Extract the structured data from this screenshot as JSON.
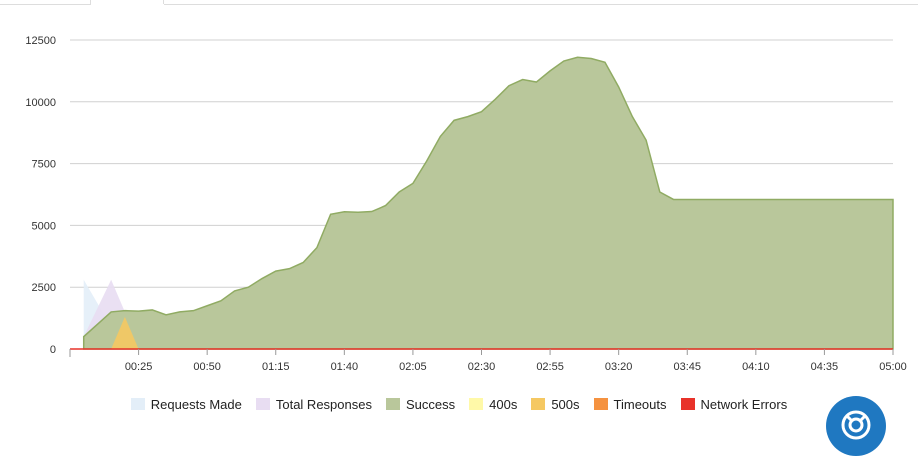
{
  "chart_data": {
    "type": "area",
    "title": "",
    "xlabel": "",
    "ylabel": "",
    "x_tick_labels": [
      "00:25",
      "00:50",
      "01:15",
      "01:40",
      "02:05",
      "02:30",
      "02:55",
      "03:20",
      "03:45",
      "04:10",
      "04:35",
      "05:00"
    ],
    "y_tick_labels": [
      "0",
      "2500",
      "5000",
      "7500",
      "10000",
      "12500"
    ],
    "y_ticks": [
      0,
      2500,
      5000,
      7500,
      10000,
      12500
    ],
    "xlim_seconds": [
      0,
      300
    ],
    "ylim": [
      0,
      12500
    ],
    "grid": true,
    "legend_position": "bottom",
    "x_seconds": [
      5,
      15,
      20,
      25,
      30,
      35,
      40,
      45,
      50,
      55,
      60,
      65,
      70,
      75,
      80,
      85,
      90,
      95,
      100,
      105,
      110,
      115,
      120,
      125,
      130,
      135,
      140,
      145,
      150,
      155,
      160,
      165,
      170,
      175,
      180,
      185,
      190,
      195,
      200,
      205,
      210,
      215,
      220,
      225,
      235,
      245,
      255,
      265,
      275,
      285,
      295,
      300
    ],
    "series": [
      {
        "name": "Requests Made",
        "color": "#e3eef8",
        "values": [
          2800,
          900,
          0,
          0,
          0,
          0,
          0,
          0,
          0,
          0,
          0,
          0,
          0,
          0,
          0,
          0,
          0,
          0,
          0,
          0,
          0,
          0,
          0,
          0,
          0,
          0,
          0,
          0,
          0,
          0,
          0,
          0,
          0,
          0,
          0,
          0,
          0,
          0,
          0,
          0,
          0,
          0,
          0,
          0,
          0,
          0,
          0,
          0,
          0,
          0,
          0,
          0
        ]
      },
      {
        "name": "Total Responses",
        "color": "#e8ddf2",
        "values": [
          500,
          2800,
          1500,
          0,
          0,
          0,
          0,
          0,
          0,
          0,
          0,
          0,
          0,
          0,
          0,
          0,
          0,
          0,
          0,
          0,
          0,
          0,
          0,
          0,
          0,
          0,
          0,
          0,
          0,
          0,
          0,
          0,
          0,
          0,
          0,
          0,
          0,
          0,
          0,
          0,
          0,
          0,
          0,
          0,
          0,
          0,
          0,
          0,
          0,
          0,
          0,
          0
        ]
      },
      {
        "name": "Success",
        "color": "#b9c79b",
        "stroke": "#90ab63",
        "values": [
          500,
          1500,
          1550,
          1530,
          1580,
          1380,
          1500,
          1550,
          1750,
          1950,
          2350,
          2500,
          2850,
          3150,
          3250,
          3500,
          4100,
          5450,
          5550,
          5530,
          5560,
          5800,
          6350,
          6700,
          7600,
          8600,
          9250,
          9400,
          9600,
          10100,
          10650,
          10900,
          10800,
          11250,
          11650,
          11800,
          11750,
          11600,
          10600,
          9400,
          8450,
          6350,
          6050,
          6050,
          6050,
          6050,
          6050,
          6050,
          6050,
          6050,
          6050,
          6050
        ]
      },
      {
        "name": "400s",
        "color": "#fff9a8",
        "values": [
          0,
          0,
          0,
          0,
          0,
          0,
          0,
          0,
          0,
          0,
          0,
          0,
          0,
          0,
          0,
          0,
          0,
          0,
          0,
          0,
          0,
          0,
          0,
          0,
          0,
          0,
          0,
          0,
          0,
          0,
          0,
          0,
          0,
          0,
          0,
          0,
          0,
          0,
          0,
          0,
          0,
          0,
          0,
          0,
          0,
          0,
          0,
          0,
          0,
          0,
          0,
          0
        ]
      },
      {
        "name": "500s",
        "color": "#f5c862",
        "values": [
          0,
          0,
          1300,
          0,
          0,
          0,
          0,
          0,
          0,
          0,
          0,
          0,
          0,
          0,
          0,
          0,
          0,
          0,
          0,
          0,
          0,
          0,
          0,
          0,
          0,
          0,
          0,
          0,
          0,
          0,
          0,
          0,
          0,
          0,
          0,
          0,
          0,
          0,
          0,
          0,
          0,
          0,
          0,
          0,
          0,
          0,
          0,
          0,
          0,
          0,
          0,
          0
        ]
      },
      {
        "name": "Timeouts",
        "color": "#f59240",
        "values": [
          0,
          0,
          0,
          0,
          0,
          0,
          0,
          0,
          0,
          0,
          0,
          0,
          0,
          0,
          0,
          0,
          0,
          0,
          0,
          0,
          0,
          0,
          0,
          0,
          0,
          0,
          0,
          0,
          0,
          0,
          0,
          0,
          0,
          0,
          0,
          0,
          0,
          0,
          0,
          0,
          0,
          0,
          0,
          0,
          0,
          0,
          0,
          0,
          0,
          0,
          0,
          0
        ]
      },
      {
        "name": "Network Errors",
        "color": "#e8322a",
        "values": [
          0,
          0,
          0,
          0,
          0,
          0,
          0,
          0,
          0,
          0,
          0,
          0,
          0,
          0,
          0,
          0,
          0,
          0,
          0,
          0,
          0,
          0,
          0,
          0,
          0,
          0,
          0,
          0,
          0,
          0,
          0,
          0,
          0,
          0,
          0,
          0,
          0,
          0,
          0,
          0,
          0,
          0,
          0,
          0,
          0,
          0,
          0,
          0,
          0,
          0,
          0,
          0
        ]
      }
    ]
  },
  "ui": {
    "help_icon": "lifebuoy-icon",
    "help_color": "#1f78c1"
  }
}
